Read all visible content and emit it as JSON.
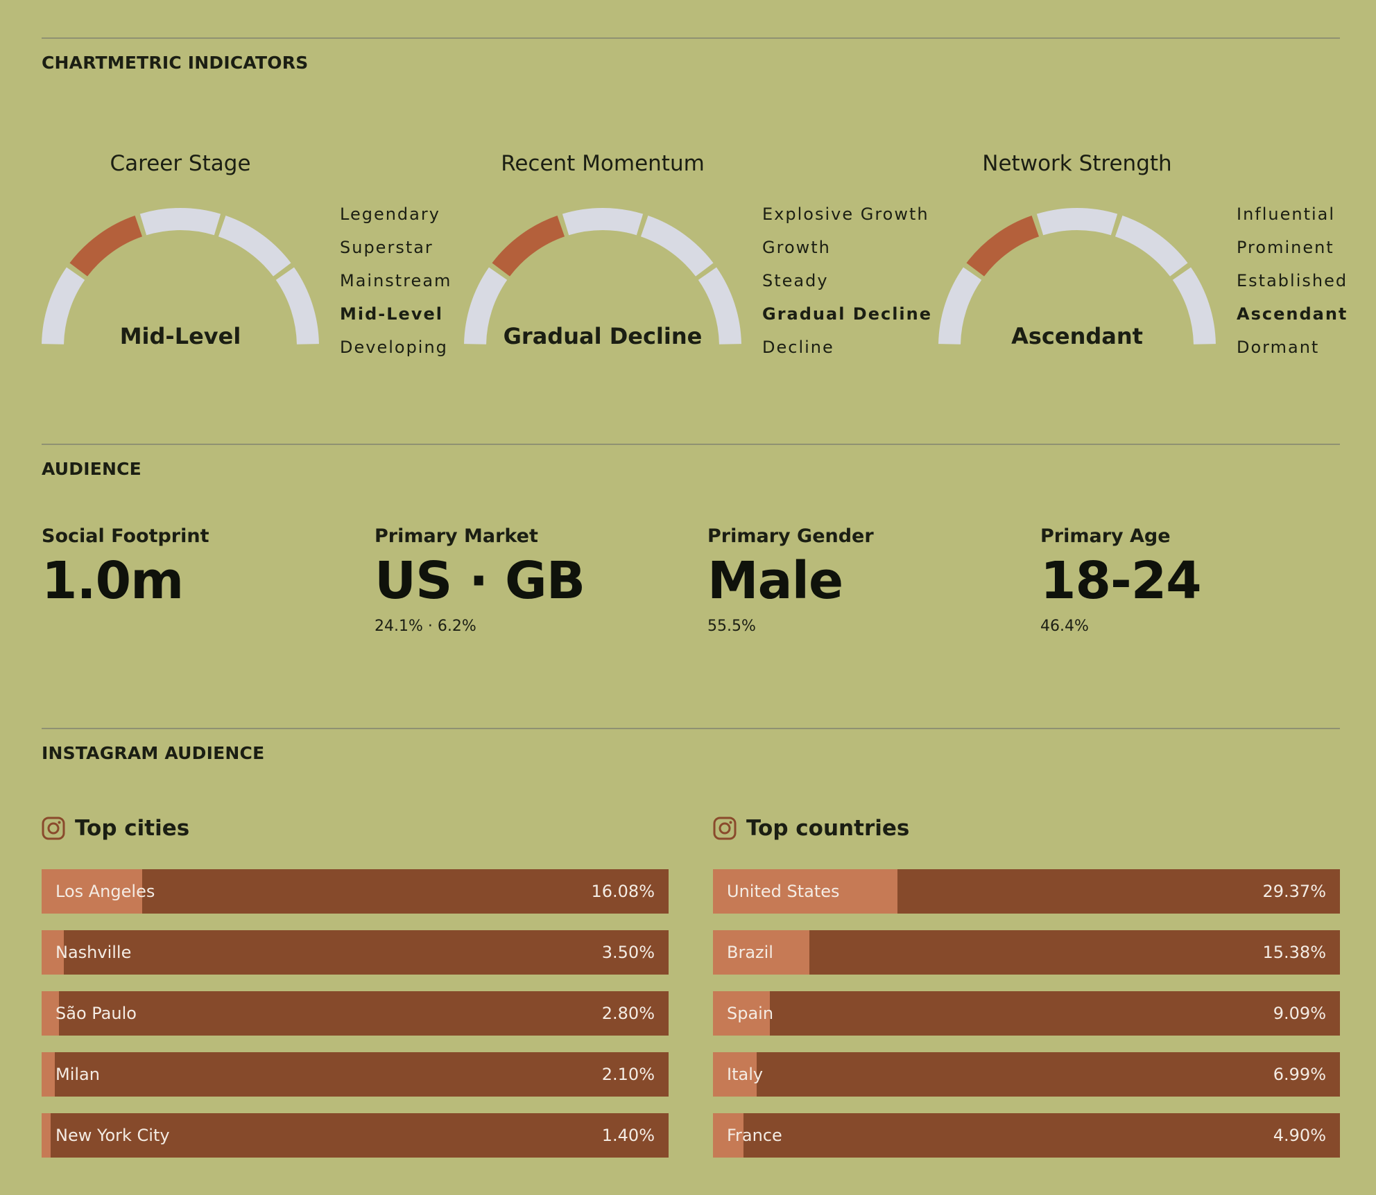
{
  "sections": {
    "indicators": "CHARTMETRIC INDICATORS",
    "audience": "AUDIENCE",
    "instagram": "INSTAGRAM AUDIENCE"
  },
  "colors": {
    "background": "#b9bb7a",
    "gauge_active": "#b4603b",
    "gauge_inactive": "#d8dae3",
    "bar_track": "#864a2b",
    "bar_fill": "#c67a55"
  },
  "gauges": [
    {
      "title": "Career Stage",
      "value": "Mid-Level",
      "levels": [
        "Legendary",
        "Superstar",
        "Mainstream",
        "Mid-Level",
        "Developing"
      ],
      "active_index": 3
    },
    {
      "title": "Recent Momentum",
      "value": "Gradual Decline",
      "levels": [
        "Explosive Growth",
        "Growth",
        "Steady",
        "Gradual Decline",
        "Decline"
      ],
      "active_index": 3
    },
    {
      "title": "Network Strength",
      "value": "Ascendant",
      "levels": [
        "Influential",
        "Prominent",
        "Established",
        "Ascendant",
        "Dormant"
      ],
      "active_index": 3
    }
  ],
  "audience": [
    {
      "label": "Social Footprint",
      "value": "1.0m",
      "sub": ""
    },
    {
      "label": "Primary Market",
      "value": "US · GB",
      "sub": "24.1% · 6.2%"
    },
    {
      "label": "Primary Gender",
      "value": "Male",
      "sub": "55.5%"
    },
    {
      "label": "Primary Age",
      "value": "18-24",
      "sub": "46.4%"
    }
  ],
  "top_cities": {
    "title": "Top cities",
    "icon": "instagram-icon",
    "max_value": 100,
    "items": [
      {
        "name": "Los Angeles",
        "pct": "16.08%",
        "value": 16.08
      },
      {
        "name": "Nashville",
        "pct": "3.50%",
        "value": 3.5
      },
      {
        "name": "São Paulo",
        "pct": "2.80%",
        "value": 2.8
      },
      {
        "name": "Milan",
        "pct": "2.10%",
        "value": 2.1
      },
      {
        "name": "New York City",
        "pct": "1.40%",
        "value": 1.4
      }
    ]
  },
  "top_countries": {
    "title": "Top countries",
    "icon": "instagram-icon",
    "max_value": 100,
    "items": [
      {
        "name": "United States",
        "pct": "29.37%",
        "value": 29.37
      },
      {
        "name": "Brazil",
        "pct": "15.38%",
        "value": 15.38
      },
      {
        "name": "Spain",
        "pct": "9.09%",
        "value": 9.09
      },
      {
        "name": "Italy",
        "pct": "6.99%",
        "value": 6.99
      },
      {
        "name": "France",
        "pct": "4.90%",
        "value": 4.9
      }
    ]
  }
}
